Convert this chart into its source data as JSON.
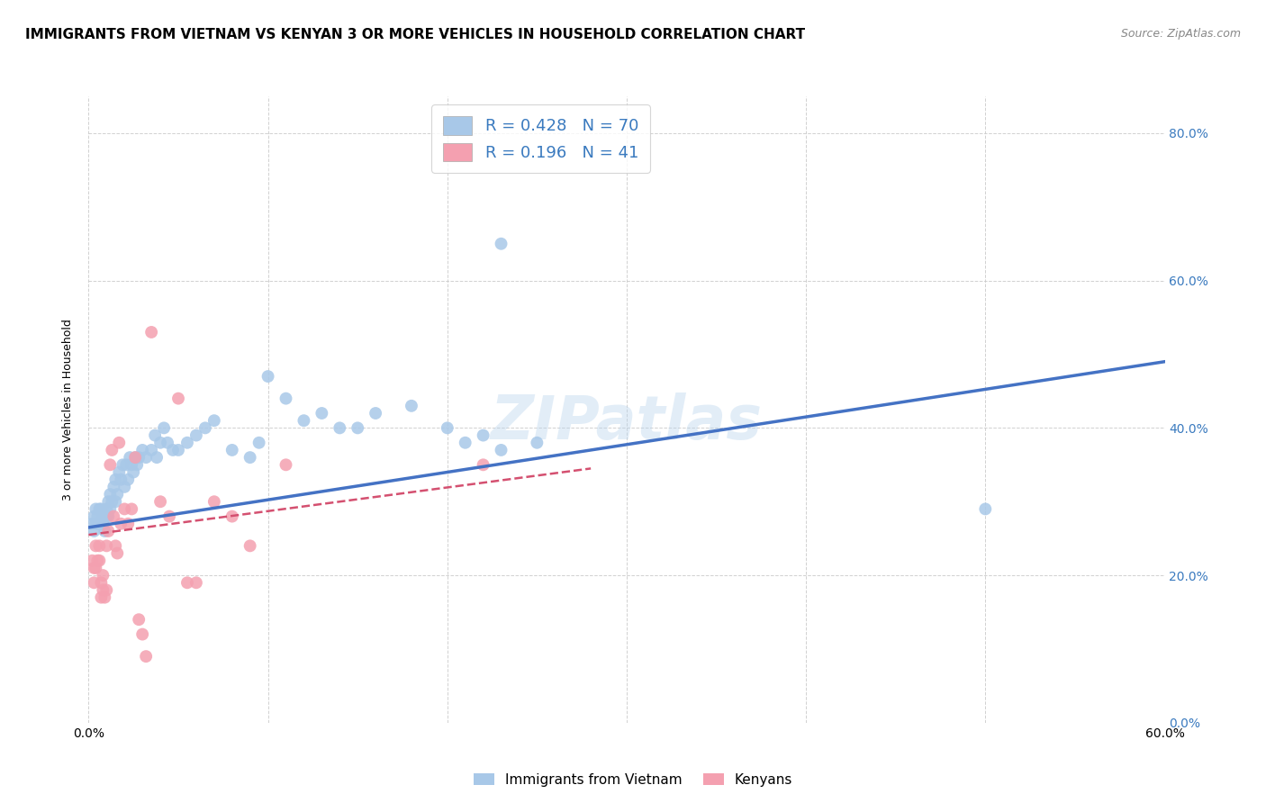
{
  "title": "IMMIGRANTS FROM VIETNAM VS KENYAN 3 OR MORE VEHICLES IN HOUSEHOLD CORRELATION CHART",
  "source": "Source: ZipAtlas.com",
  "ylabel_text": "3 or more Vehicles in Household",
  "xmin": 0.0,
  "xmax": 0.6,
  "ymin": 0.0,
  "ymax": 0.85,
  "xticks": [
    0.0,
    0.1,
    0.2,
    0.3,
    0.4,
    0.5,
    0.6
  ],
  "yticks": [
    0.0,
    0.2,
    0.4,
    0.6,
    0.8
  ],
  "xtick_labels": [
    "0.0%",
    "",
    "",
    "",
    "",
    "",
    "60.0%"
  ],
  "ytick_labels_right": [
    "0.0%",
    "20.0%",
    "40.0%",
    "60.0%",
    "80.0%"
  ],
  "title_fontsize": 11,
  "axis_label_fontsize": 9,
  "tick_fontsize": 10,
  "blue_color": "#a8c8e8",
  "blue_color_line": "#4472c4",
  "pink_color": "#f4a0b0",
  "pink_color_line": "#d45070",
  "legend_color": "#3a7abf",
  "legend_blue_R": "0.428",
  "legend_blue_N": "70",
  "legend_pink_R": "0.196",
  "legend_pink_N": "41",
  "blue_scatter_x": [
    0.002,
    0.003,
    0.003,
    0.004,
    0.004,
    0.005,
    0.005,
    0.006,
    0.006,
    0.007,
    0.007,
    0.008,
    0.008,
    0.009,
    0.009,
    0.01,
    0.01,
    0.011,
    0.011,
    0.012,
    0.012,
    0.013,
    0.014,
    0.015,
    0.015,
    0.016,
    0.017,
    0.018,
    0.019,
    0.02,
    0.021,
    0.022,
    0.023,
    0.024,
    0.025,
    0.026,
    0.027,
    0.028,
    0.03,
    0.032,
    0.035,
    0.037,
    0.038,
    0.04,
    0.042,
    0.044,
    0.047,
    0.05,
    0.055,
    0.06,
    0.065,
    0.07,
    0.08,
    0.09,
    0.095,
    0.1,
    0.11,
    0.12,
    0.13,
    0.14,
    0.15,
    0.16,
    0.18,
    0.2,
    0.21,
    0.22,
    0.23,
    0.25,
    0.5,
    0.23
  ],
  "blue_scatter_y": [
    0.27,
    0.28,
    0.26,
    0.29,
    0.27,
    0.27,
    0.28,
    0.27,
    0.29,
    0.27,
    0.29,
    0.28,
    0.27,
    0.26,
    0.28,
    0.29,
    0.28,
    0.3,
    0.28,
    0.29,
    0.31,
    0.3,
    0.32,
    0.3,
    0.33,
    0.31,
    0.34,
    0.33,
    0.35,
    0.32,
    0.35,
    0.33,
    0.36,
    0.35,
    0.34,
    0.36,
    0.35,
    0.36,
    0.37,
    0.36,
    0.37,
    0.39,
    0.36,
    0.38,
    0.4,
    0.38,
    0.37,
    0.37,
    0.38,
    0.39,
    0.4,
    0.41,
    0.37,
    0.36,
    0.38,
    0.47,
    0.44,
    0.41,
    0.42,
    0.4,
    0.4,
    0.42,
    0.43,
    0.4,
    0.38,
    0.39,
    0.37,
    0.38,
    0.29,
    0.65
  ],
  "pink_scatter_x": [
    0.002,
    0.003,
    0.003,
    0.004,
    0.004,
    0.005,
    0.006,
    0.006,
    0.007,
    0.007,
    0.008,
    0.008,
    0.009,
    0.01,
    0.01,
    0.011,
    0.012,
    0.013,
    0.014,
    0.015,
    0.016,
    0.017,
    0.018,
    0.02,
    0.022,
    0.024,
    0.026,
    0.028,
    0.03,
    0.032,
    0.035,
    0.04,
    0.045,
    0.05,
    0.055,
    0.06,
    0.07,
    0.08,
    0.09,
    0.11,
    0.22
  ],
  "pink_scatter_y": [
    0.22,
    0.21,
    0.19,
    0.24,
    0.21,
    0.22,
    0.24,
    0.22,
    0.19,
    0.17,
    0.2,
    0.18,
    0.17,
    0.18,
    0.24,
    0.26,
    0.35,
    0.37,
    0.28,
    0.24,
    0.23,
    0.38,
    0.27,
    0.29,
    0.27,
    0.29,
    0.36,
    0.14,
    0.12,
    0.09,
    0.53,
    0.3,
    0.28,
    0.44,
    0.19,
    0.19,
    0.3,
    0.28,
    0.24,
    0.35,
    0.35
  ],
  "blue_line_x0": 0.0,
  "blue_line_x1": 0.6,
  "blue_line_y0": 0.265,
  "blue_line_y1": 0.49,
  "pink_line_x0": 0.0,
  "pink_line_x1": 0.28,
  "pink_line_y0": 0.255,
  "pink_line_y1": 0.345,
  "watermark": "ZIPatlas",
  "background_color": "#ffffff",
  "grid_color": "#cccccc"
}
